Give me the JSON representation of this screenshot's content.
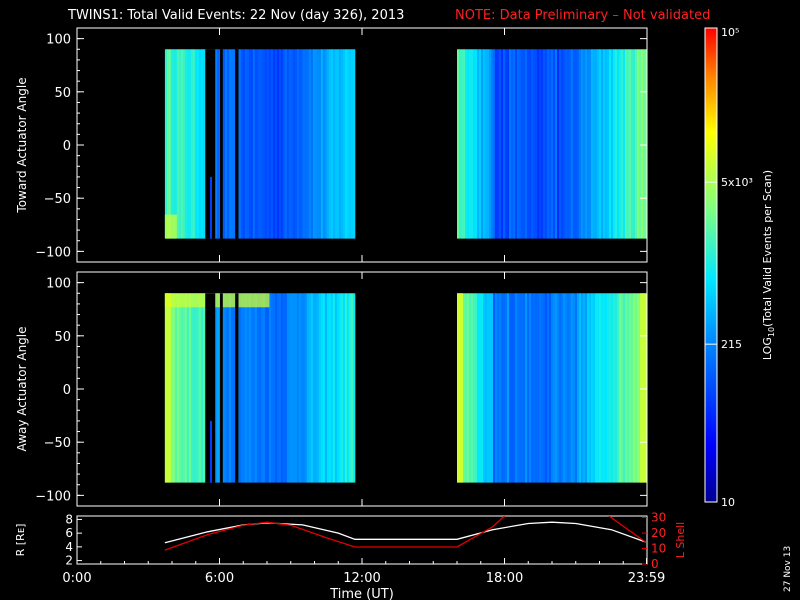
{
  "header": {
    "title": "TWINS1: Total Valid Events: 22 Nov (day 326), 2013",
    "note": "NOTE: Data Preliminary – Not validated"
  },
  "colors": {
    "background": "#000000",
    "note_red": "#ff2020",
    "r_line": "#ffffff",
    "lshell_line": "#e00000"
  },
  "chart_data": [
    {
      "type": "heatmap",
      "panel": "toward",
      "ylabel": "Toward Actuator Angle",
      "ylim": [
        -110,
        110
      ],
      "yticks": [
        "100",
        "50",
        "0",
        "−50",
        "−100"
      ],
      "ytick_values": [
        100,
        50,
        0,
        -50,
        -100
      ],
      "xlim": [
        0,
        24
      ],
      "data_blocks": [
        {
          "t_start": 3.7,
          "t_end": 11.7,
          "angle_min": -88,
          "angle_max": 90
        },
        {
          "t_start": 16.0,
          "t_end": 23.95,
          "angle_min": -88,
          "angle_max": 90
        }
      ],
      "gaps": [
        {
          "t_start": 5.4,
          "t_end": 5.82,
          "angle_min": -88,
          "angle_max": 90
        },
        {
          "t_start": 6.02,
          "t_end": 6.14,
          "angle_min": -88,
          "angle_max": 90
        },
        {
          "t_start": 6.66,
          "t_end": 6.8,
          "angle_min": -88,
          "angle_max": 90
        }
      ]
    },
    {
      "type": "heatmap",
      "panel": "away",
      "ylabel": "Away Actuator Angle",
      "ylim": [
        -110,
        110
      ],
      "yticks": [
        "100",
        "50",
        "0",
        "−50",
        "−100"
      ],
      "ytick_values": [
        100,
        50,
        0,
        -50,
        -100
      ],
      "xlim": [
        0,
        24
      ],
      "data_blocks": [
        {
          "t_start": 3.7,
          "t_end": 11.7,
          "angle_min": -88,
          "angle_max": 90
        },
        {
          "t_start": 16.0,
          "t_end": 23.95,
          "angle_min": -88,
          "angle_max": 90
        }
      ],
      "gaps": [
        {
          "t_start": 5.4,
          "t_end": 5.82,
          "angle_min": -88,
          "angle_max": 90
        },
        {
          "t_start": 6.02,
          "t_end": 6.14,
          "angle_min": -88,
          "angle_max": 90
        },
        {
          "t_start": 6.66,
          "t_end": 6.8,
          "angle_min": -88,
          "angle_max": 90
        }
      ]
    },
    {
      "type": "line",
      "panel": "orbit",
      "ylabel_left": "R [Rᴇ]",
      "ylabel_right": "L Shell",
      "xlabel": "Time (UT)",
      "xticks": [
        "0:00",
        "6:00",
        "12:00",
        "18:00",
        "23:59"
      ],
      "xtick_values": [
        0,
        6,
        12,
        18,
        23.98
      ],
      "left_ylim": [
        1.5,
        8.5
      ],
      "left_yticks": [
        "8",
        "6",
        "4",
        "2"
      ],
      "left_ytick_values": [
        8,
        6,
        4,
        2
      ],
      "right_ylim": [
        0,
        31
      ],
      "right_yticks": [
        "30",
        "20",
        "10",
        "0"
      ],
      "right_ytick_values": [
        30,
        20,
        10,
        0
      ],
      "series": [
        {
          "name": "R",
          "axis": "left",
          "x": [
            3.7,
            5.5,
            7.0,
            8.0,
            9.5,
            11.0,
            11.7,
            16.0,
            17.5,
            19.0,
            20.0,
            21.0,
            22.5,
            23.95
          ],
          "y": [
            4.6,
            6.2,
            7.2,
            7.5,
            7.2,
            6.0,
            5.1,
            5.1,
            6.5,
            7.4,
            7.6,
            7.4,
            6.5,
            4.7
          ]
        },
        {
          "name": "L Shell",
          "axis": "right",
          "x": [
            3.7,
            5.5,
            7.0,
            8.0,
            9.0,
            10.5,
            11.7,
            16.0,
            17.5,
            18.0
          ],
          "y": [
            9,
            19,
            25,
            27,
            25,
            17,
            11,
            11,
            24,
            31
          ],
          "x2": [
            22.4,
            23.95
          ],
          "y2": [
            31,
            14
          ]
        }
      ]
    }
  ],
  "colorbar": {
    "label": "LOG10(Total Valid Events per Scan)",
    "label_main": "LOG",
    "label_sub": "10",
    "label_rest": "(Total Valid Events per Scan)",
    "tick_labels": [
      "10⁵",
      "5x10³",
      "215",
      "10"
    ],
    "tick_log_values": [
      5.0,
      3.699,
      2.332,
      1.0
    ],
    "range_log": [
      1.0,
      5.0
    ]
  },
  "footer": {
    "date_stamp": "27 Nov 13"
  }
}
